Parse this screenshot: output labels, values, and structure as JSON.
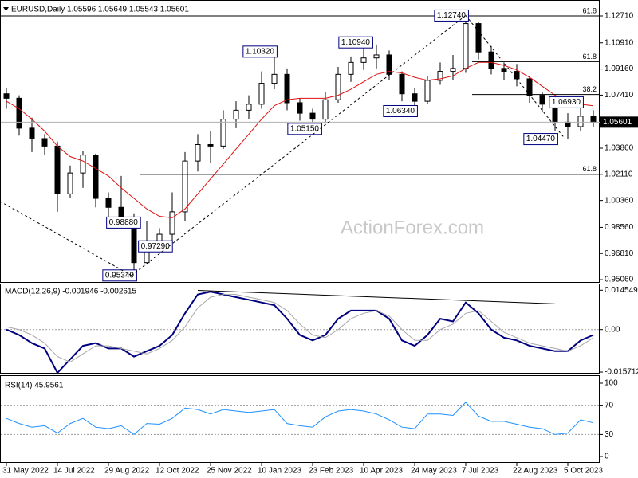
{
  "chart_data": [
    {
      "type": "candlestick",
      "title": "EURUSD,Daily  1.05596 1.05649 1.05543 1.05601",
      "watermark": "ActionForex.com",
      "xlim": [
        -0.5,
        46.5
      ],
      "ylim": [
        0.9485,
        1.1351
      ],
      "yticks": [
        {
          "value": 1.1271,
          "label": "1.12710"
        },
        {
          "value": 1.1091,
          "label": "1.10910"
        },
        {
          "value": 1.0916,
          "label": "1.09160"
        },
        {
          "value": 1.0741,
          "label": "1.07410"
        },
        {
          "value": 1.0386,
          "label": "1.03860"
        },
        {
          "value": 1.0211,
          "label": "1.02110"
        },
        {
          "value": 1.0036,
          "label": "1.00360"
        },
        {
          "value": 0.9856,
          "label": "0.98560"
        },
        {
          "value": 0.9681,
          "label": "0.96810"
        },
        {
          "value": 0.9506,
          "label": "0.95060"
        }
      ],
      "color": "#000000",
      "open": [
        1.075,
        1.072,
        1.052,
        1.045,
        1.04,
        1.008,
        1.022,
        1.034,
        1.005,
        0.999,
        0.99,
        0.962,
        0.975,
        0.981,
        0.996,
        1.03,
        1.041,
        1.04,
        1.058,
        1.064,
        1.068,
        1.082,
        1.088,
        1.069,
        1.062,
        1.058,
        1.071,
        1.088,
        1.096,
        1.099,
        1.101,
        1.088,
        1.075,
        1.07,
        1.084,
        1.09,
        1.092,
        1.122,
        1.103,
        1.092,
        1.09,
        1.085,
        1.074,
        1.068,
        1.056,
        1.053,
        1.06
      ],
      "high": [
        1.079,
        1.074,
        1.059,
        1.048,
        1.043,
        1.027,
        1.037,
        1.035,
        1.009,
        1.02,
        0.995,
        0.99,
        0.985,
        1.009,
        1.036,
        1.048,
        1.05,
        1.064,
        1.07,
        1.074,
        1.09,
        1.1032,
        1.092,
        1.072,
        1.065,
        1.076,
        1.093,
        1.1,
        1.1094,
        1.108,
        1.104,
        1.09,
        1.079,
        1.087,
        1.096,
        1.101,
        1.1274,
        1.123,
        1.107,
        1.096,
        1.095,
        1.087,
        1.076,
        1.07,
        1.062,
        1.0693,
        1.064
      ],
      "low": [
        1.065,
        1.047,
        1.036,
        1.034,
        0.996,
        1.005,
        1.012,
        0.999,
        0.9888,
        0.986,
        0.9534,
        0.963,
        0.9729,
        0.974,
        0.99,
        1.023,
        1.029,
        1.038,
        1.052,
        1.058,
        1.065,
        1.078,
        1.064,
        1.057,
        1.0515,
        1.056,
        1.069,
        1.083,
        1.091,
        1.092,
        1.084,
        1.07,
        1.0634,
        1.068,
        1.081,
        1.084,
        1.089,
        1.098,
        1.088,
        1.084,
        1.08,
        1.069,
        1.063,
        1.05,
        1.0447,
        1.05,
        1.053
      ],
      "close": [
        1.072,
        1.052,
        1.045,
        1.04,
        1.008,
        1.022,
        1.034,
        1.005,
        0.999,
        0.99,
        0.962,
        0.975,
        0.981,
        0.996,
        1.03,
        1.041,
        1.04,
        1.058,
        1.064,
        1.068,
        1.082,
        1.088,
        1.069,
        1.062,
        1.058,
        1.071,
        1.088,
        1.096,
        1.099,
        1.101,
        1.088,
        1.075,
        1.07,
        1.084,
        1.09,
        1.092,
        1.122,
        1.103,
        1.092,
        1.09,
        1.085,
        1.074,
        1.068,
        1.056,
        1.053,
        1.06,
        1.056
      ],
      "overlays": [
        {
          "color": "#e01010",
          "values": [
            1.07,
            1.065,
            1.058,
            1.05,
            1.04,
            1.033,
            1.03,
            1.025,
            1.02,
            1.012,
            1.005,
            0.998,
            0.993,
            0.992,
            0.998,
            1.008,
            1.018,
            1.028,
            1.038,
            1.048,
            1.058,
            1.067,
            1.071,
            1.072,
            1.072,
            1.072,
            1.074,
            1.078,
            1.083,
            1.088,
            1.09,
            1.089,
            1.086,
            1.084,
            1.085,
            1.087,
            1.092,
            1.096,
            1.096,
            1.094,
            1.091,
            1.086,
            1.08,
            1.074,
            1.07,
            1.068,
            1.067
          ]
        }
      ],
      "trendlines": [
        {
          "x": [
            -0.5,
            9.8
          ],
          "values": [
            1.003,
            0.9534
          ]
        },
        {
          "x": [
            9.8,
            36
          ],
          "values": [
            0.9534,
            1.1274
          ]
        },
        {
          "x": [
            36,
            43.8
          ],
          "values": [
            1.1274,
            1.0447
          ]
        }
      ],
      "levels": [
        {
          "name": "61.8",
          "value": 1.1271,
          "x": -0.5
        },
        {
          "name": "61.8",
          "value": 1.0965,
          "x": 36.5
        },
        {
          "name": "38.2",
          "value": 1.0745,
          "x": 36.5
        },
        {
          "name": "61.8",
          "value": 1.0211,
          "x": 10.5
        }
      ],
      "annotations": [
        {
          "label": "1.12740",
          "value": 1.1274,
          "x": 36
        },
        {
          "label": "1.10320",
          "value": 1.1032,
          "x": 21
        },
        {
          "label": "1.10940",
          "value": 1.1094,
          "x": 28.5
        },
        {
          "label": "1.06340",
          "value": 1.0634,
          "x": 32
        },
        {
          "label": "1.05150",
          "value": 1.0515,
          "x": 24.5
        },
        {
          "label": "1.06930",
          "value": 1.0693,
          "x": 45
        },
        {
          "label": "1.04470",
          "value": 1.0447,
          "x": 43
        },
        {
          "label": "0.98880",
          "value": 0.9888,
          "x": 10.3
        },
        {
          "label": "0.97290",
          "value": 0.9729,
          "x": 12.8
        },
        {
          "label": "0.95340",
          "value": 0.9534,
          "x": 10
        }
      ],
      "last": {
        "value": 1.05601,
        "label": "1.05601"
      }
    },
    {
      "type": "line",
      "title": "MACD(12,26,9) -0.001946 -0.002615",
      "xlim": [
        -0.5,
        46.5
      ],
      "ylim": [
        -0.016,
        0.0167
      ],
      "yticks": [
        0.014549,
        {
          "value": 0,
          "label": "0.00"
        },
        -0.015712
      ],
      "dotted_levels": [
        0
      ],
      "series": [
        {
          "color": "#000080",
          "values": [
            0.0,
            -0.002,
            -0.005,
            -0.007,
            -0.016,
            -0.011,
            -0.006,
            -0.005,
            -0.007,
            -0.007,
            -0.01,
            -0.008,
            -0.006,
            -0.002,
            0.006,
            0.013,
            0.014,
            0.013,
            0.012,
            0.011,
            0.01,
            0.009,
            0.004,
            -0.002,
            -0.004,
            -0.002,
            0.004,
            0.007,
            0.007,
            0.007,
            0.004,
            -0.004,
            -0.006,
            -0.002,
            0.004,
            0.003,
            0.01,
            0.006,
            0.0,
            -0.003,
            -0.004,
            -0.006,
            -0.007,
            -0.008,
            -0.008,
            -0.004,
            -0.002
          ]
        },
        {
          "color": "#a8a8a8",
          "values": [
            0.001,
            0.0,
            -0.002,
            -0.005,
            -0.01,
            -0.012,
            -0.009,
            -0.006,
            -0.006,
            -0.007,
            -0.008,
            -0.009,
            -0.007,
            -0.004,
            0.001,
            0.008,
            0.012,
            0.013,
            0.013,
            0.012,
            0.011,
            0.01,
            0.007,
            0.002,
            -0.002,
            -0.003,
            0.0,
            0.004,
            0.006,
            0.007,
            0.005,
            0.0,
            -0.004,
            -0.004,
            0.0,
            0.002,
            0.006,
            0.007,
            0.003,
            -0.001,
            -0.003,
            -0.005,
            -0.006,
            -0.007,
            -0.008,
            -0.006,
            -0.003
          ]
        }
      ],
      "trendlines": [
        {
          "x": [
            15,
            43
          ],
          "values": [
            0.0145,
            0.0095
          ]
        }
      ]
    },
    {
      "type": "line",
      "title": "RSI(14) 45.9561",
      "xlim": [
        -0.5,
        46.5
      ],
      "ylim": [
        -7.6,
        109.8
      ],
      "yticks": [
        100,
        70,
        30,
        0
      ],
      "dotted_levels": [
        70,
        30
      ],
      "series": [
        {
          "color": "#1e90ff",
          "values": [
            52,
            45,
            40,
            42,
            32,
            45,
            52,
            40,
            38,
            42,
            30,
            45,
            44,
            52,
            66,
            64,
            58,
            64,
            62,
            60,
            62,
            64,
            45,
            42,
            40,
            54,
            62,
            64,
            62,
            58,
            50,
            40,
            38,
            58,
            58,
            56,
            74,
            55,
            48,
            48,
            44,
            40,
            38,
            30,
            32,
            50,
            46
          ]
        }
      ],
      "xticks": [
        {
          "value": 0,
          "label": "31 May 2022"
        },
        {
          "value": 4,
          "label": "14 Jul 2022"
        },
        {
          "value": 8,
          "label": "29 Aug 2022"
        },
        {
          "value": 12,
          "label": "12 Oct 2022"
        },
        {
          "value": 16,
          "label": "25 Nov 2022"
        },
        {
          "value": 20,
          "label": "10 Jan 2023"
        },
        {
          "value": 24,
          "label": "23 Feb 2023"
        },
        {
          "value": 28,
          "label": "10 Apr 2023"
        },
        {
          "value": 32,
          "label": "24 May 2023"
        },
        {
          "value": 36,
          "label": "7 Jul 2023"
        },
        {
          "value": 40,
          "label": "22 Aug 2023"
        },
        {
          "value": 44,
          "label": "5 Oct 2023"
        }
      ]
    }
  ]
}
